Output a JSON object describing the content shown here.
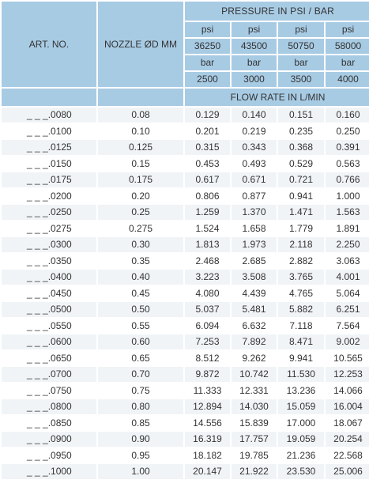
{
  "header": {
    "art_no": "ART. NO.",
    "nozzle": "NOZZLE ØD MM",
    "pressure_title": "PRESSURE IN PSI / BAR",
    "flow_title": "FLOW RATE IN L/MIN",
    "columns": [
      {
        "psi_label": "psi",
        "psi_value": "36250",
        "bar_label": "bar",
        "bar_value": "2500"
      },
      {
        "psi_label": "psi",
        "psi_value": "43500",
        "bar_label": "bar",
        "bar_value": "3000"
      },
      {
        "psi_label": "psi",
        "psi_value": "50750",
        "bar_label": "bar",
        "bar_value": "3500"
      },
      {
        "psi_label": "psi",
        "psi_value": "58000",
        "bar_label": "bar",
        "bar_value": "4000"
      }
    ]
  },
  "rows": [
    {
      "art": "_ _ _.0080",
      "nozzle": "0.08",
      "f": [
        "0.129",
        "0.140",
        "0.151",
        "0.160"
      ]
    },
    {
      "art": "_ _ _.0100",
      "nozzle": "0.10",
      "f": [
        "0.201",
        "0.219",
        "0.235",
        "0.250"
      ]
    },
    {
      "art": "_ _ _.0125",
      "nozzle": "0.125",
      "f": [
        "0.315",
        "0.343",
        "0.368",
        "0.391"
      ]
    },
    {
      "art": "_ _ _.0150",
      "nozzle": "0.15",
      "f": [
        "0.453",
        "0.493",
        "0.529",
        "0.563"
      ]
    },
    {
      "art": "_ _ _.0175",
      "nozzle": "0.175",
      "f": [
        "0.617",
        "0.671",
        "0.721",
        "0.766"
      ]
    },
    {
      "art": "_ _ _.0200",
      "nozzle": "0.20",
      "f": [
        "0.806",
        "0.877",
        "0.941",
        "1.000"
      ]
    },
    {
      "art": "_ _ _.0250",
      "nozzle": "0.25",
      "f": [
        "1.259",
        "1.370",
        "1.471",
        "1.563"
      ]
    },
    {
      "art": "_ _ _.0275",
      "nozzle": "0.275",
      "f": [
        "1.524",
        "1.658",
        "1.779",
        "1.891"
      ]
    },
    {
      "art": "_ _ _.0300",
      "nozzle": "0.30",
      "f": [
        "1.813",
        "1.973",
        "2.118",
        "2.250"
      ]
    },
    {
      "art": "_ _ _.0350",
      "nozzle": "0.35",
      "f": [
        "2.468",
        "2.685",
        "2.882",
        "3.063"
      ]
    },
    {
      "art": "_ _ _.0400",
      "nozzle": "0.40",
      "f": [
        "3.223",
        "3.508",
        "3.765",
        "4.001"
      ]
    },
    {
      "art": "_ _ _.0450",
      "nozzle": "0.45",
      "f": [
        "4.080",
        "4.439",
        "4.765",
        "5.064"
      ]
    },
    {
      "art": "_ _ _.0500",
      "nozzle": "0.50",
      "f": [
        "5.037",
        "5.481",
        "5.882",
        "6.251"
      ]
    },
    {
      "art": "_ _ _.0550",
      "nozzle": "0.55",
      "f": [
        "6.094",
        "6.632",
        "7.118",
        "7.564"
      ]
    },
    {
      "art": "_ _ _.0600",
      "nozzle": "0.60",
      "f": [
        "7.253",
        "7.892",
        "8.471",
        "9.002"
      ]
    },
    {
      "art": "_ _ _.0650",
      "nozzle": "0.65",
      "f": [
        "8.512",
        "9.262",
        "9.941",
        "10.565"
      ]
    },
    {
      "art": "_ _ _.0700",
      "nozzle": "0.70",
      "f": [
        "9.872",
        "10.742",
        "11.530",
        "12.253"
      ]
    },
    {
      "art": "_ _ _.0750",
      "nozzle": "0.75",
      "f": [
        "11.333",
        "12.331",
        "13.236",
        "14.066"
      ]
    },
    {
      "art": "_ _ _.0800",
      "nozzle": "0.80",
      "f": [
        "12.894",
        "14.030",
        "15.059",
        "16.004"
      ]
    },
    {
      "art": "_ _ _.0850",
      "nozzle": "0.85",
      "f": [
        "14.556",
        "15.839",
        "17.000",
        "18.067"
      ]
    },
    {
      "art": "_ _ _.0900",
      "nozzle": "0.90",
      "f": [
        "16.319",
        "17.757",
        "19.059",
        "20.254"
      ]
    },
    {
      "art": "_ _ _.0950",
      "nozzle": "0.95",
      "f": [
        "18.182",
        "19.785",
        "21.236",
        "22.568"
      ]
    },
    {
      "art": "_ _ _.1000",
      "nozzle": "1.00",
      "f": [
        "20.147",
        "21.922",
        "23.530",
        "25.006"
      ]
    }
  ]
}
